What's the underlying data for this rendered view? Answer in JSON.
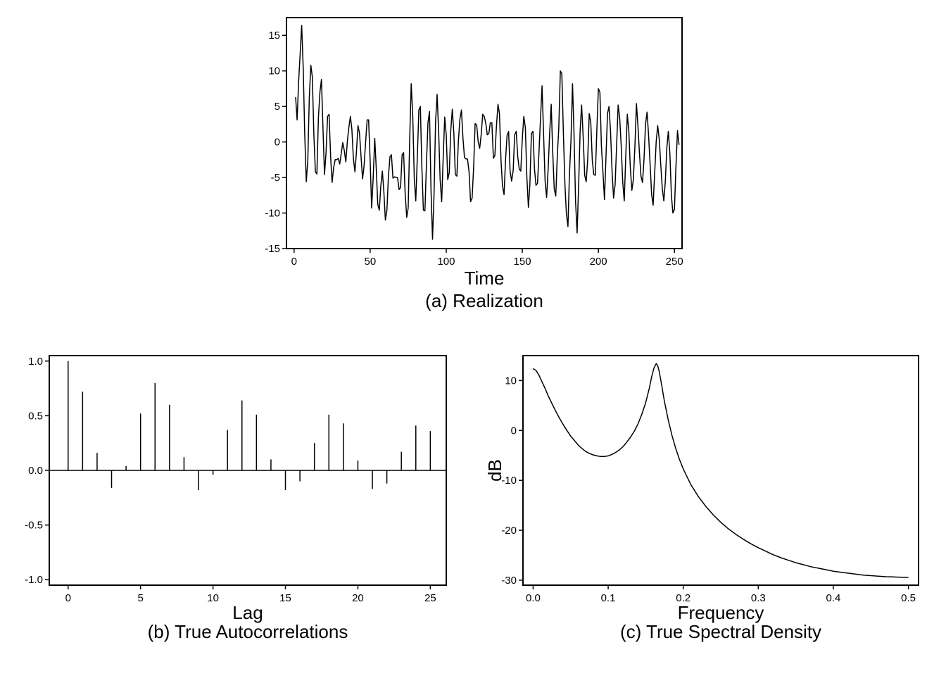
{
  "chart_data": [
    {
      "id": "realization",
      "type": "line",
      "caption": "(a) Realization",
      "xlabel": "Time",
      "ylabel": "",
      "xlim": [
        -5,
        255
      ],
      "ylim": [
        -15,
        17.5
      ],
      "xticks": [
        0,
        50,
        100,
        150,
        200,
        250
      ],
      "xtick_labels": [
        "0",
        "50",
        "100",
        "150",
        "200",
        "250"
      ],
      "yticks": [
        -15,
        -10,
        -5,
        0,
        5,
        10,
        15
      ],
      "ytick_labels": [
        "-15",
        "-10",
        "-5",
        "0",
        "5",
        "10",
        "15"
      ],
      "points": [
        [
          1,
          6.3
        ],
        [
          2,
          3.1
        ],
        [
          3,
          8.6
        ],
        [
          4,
          12.5
        ],
        [
          5,
          16.4
        ],
        [
          6,
          10.4
        ],
        [
          7,
          1.2
        ],
        [
          8,
          -5.6
        ],
        [
          9,
          -2.6
        ],
        [
          10,
          6.2
        ],
        [
          11,
          10.8
        ],
        [
          12,
          9.2
        ],
        [
          13,
          1.1
        ],
        [
          14,
          -4.2
        ],
        [
          15,
          -4.5
        ],
        [
          16,
          3.5
        ],
        [
          17,
          7.1
        ],
        [
          18,
          8.8
        ],
        [
          19,
          1.8
        ],
        [
          20,
          -4.6
        ],
        [
          21,
          -1.5
        ],
        [
          22,
          3.6
        ],
        [
          23,
          3.9
        ],
        [
          24,
          -2.0
        ],
        [
          25,
          -5.7
        ],
        [
          26,
          -3.6
        ],
        [
          27,
          -2.5
        ],
        [
          28,
          -2.5
        ],
        [
          29,
          -2.3
        ],
        [
          30,
          -3.1
        ],
        [
          31,
          -1.6
        ],
        [
          32,
          -0.1
        ],
        [
          33,
          -1.2
        ],
        [
          34,
          -2.8
        ],
        [
          35,
          0.1
        ],
        [
          36,
          2.0
        ],
        [
          37,
          3.6
        ],
        [
          38,
          1.8
        ],
        [
          39,
          -2.4
        ],
        [
          40,
          -4.2
        ],
        [
          41,
          -1.4
        ],
        [
          42,
          2.3
        ],
        [
          43,
          1.2
        ],
        [
          44,
          -2.0
        ],
        [
          45,
          -5.2
        ],
        [
          46,
          -3.4
        ],
        [
          47,
          -0.1
        ],
        [
          48,
          3.1
        ],
        [
          49,
          3.1
        ],
        [
          50,
          -2.7
        ],
        [
          51,
          -9.3
        ],
        [
          52,
          -5.0
        ],
        [
          53,
          0.5
        ],
        [
          54,
          -3.6
        ],
        [
          55,
          -8.8
        ],
        [
          56,
          -9.6
        ],
        [
          57,
          -6.2
        ],
        [
          58,
          -4.1
        ],
        [
          59,
          -6.9
        ],
        [
          60,
          -11.0
        ],
        [
          61,
          -9.6
        ],
        [
          62,
          -4.9
        ],
        [
          63,
          -2.1
        ],
        [
          64,
          -1.8
        ],
        [
          65,
          -5.1
        ],
        [
          66,
          -4.9
        ],
        [
          67,
          -5.0
        ],
        [
          68,
          -5.0
        ],
        [
          69,
          -6.7
        ],
        [
          70,
          -6.4
        ],
        [
          71,
          -1.8
        ],
        [
          72,
          -1.5
        ],
        [
          73,
          -7.2
        ],
        [
          74,
          -10.6
        ],
        [
          75,
          -9.3
        ],
        [
          76,
          0.5
        ],
        [
          77,
          8.2
        ],
        [
          78,
          3.7
        ],
        [
          79,
          -5.2
        ],
        [
          80,
          -8.3
        ],
        [
          81,
          -2.1
        ],
        [
          82,
          4.5
        ],
        [
          83,
          5.0
        ],
        [
          84,
          -3.7
        ],
        [
          85,
          -9.6
        ],
        [
          86,
          -9.7
        ],
        [
          87,
          -3.0
        ],
        [
          88,
          2.7
        ],
        [
          89,
          4.3
        ],
        [
          90,
          -6.6
        ],
        [
          91,
          -13.7
        ],
        [
          92,
          -7.2
        ],
        [
          93,
          2.8
        ],
        [
          94,
          6.7
        ],
        [
          95,
          1.5
        ],
        [
          96,
          -5.3
        ],
        [
          97,
          -8.4
        ],
        [
          98,
          -2.4
        ],
        [
          99,
          3.5
        ],
        [
          100,
          1.0
        ],
        [
          101,
          -5.3
        ],
        [
          102,
          -4.3
        ],
        [
          103,
          1.6
        ],
        [
          104,
          4.6
        ],
        [
          105,
          1.2
        ],
        [
          106,
          -4.6
        ],
        [
          107,
          -4.8
        ],
        [
          108,
          0.2
        ],
        [
          109,
          3.2
        ],
        [
          110,
          4.5
        ],
        [
          111,
          0.6
        ],
        [
          112,
          -2.2
        ],
        [
          113,
          -2.4
        ],
        [
          114,
          -2.4
        ],
        [
          115,
          -4.2
        ],
        [
          116,
          -8.4
        ],
        [
          117,
          -7.9
        ],
        [
          118,
          -3.6
        ],
        [
          119,
          2.6
        ],
        [
          120,
          2.4
        ],
        [
          121,
          0.0
        ],
        [
          122,
          -0.9
        ],
        [
          123,
          1.1
        ],
        [
          124,
          3.9
        ],
        [
          125,
          3.6
        ],
        [
          126,
          2.6
        ],
        [
          127,
          1.0
        ],
        [
          128,
          1.2
        ],
        [
          129,
          2.7
        ],
        [
          130,
          2.7
        ],
        [
          131,
          -2.3
        ],
        [
          132,
          -1.9
        ],
        [
          133,
          2.2
        ],
        [
          134,
          5.3
        ],
        [
          135,
          4.0
        ],
        [
          136,
          -2.6
        ],
        [
          137,
          -6.2
        ],
        [
          138,
          -7.4
        ],
        [
          139,
          -2.4
        ],
        [
          140,
          0.9
        ],
        [
          141,
          1.5
        ],
        [
          142,
          -4.1
        ],
        [
          143,
          -5.5
        ],
        [
          144,
          -4.0
        ],
        [
          145,
          1.0
        ],
        [
          146,
          1.5
        ],
        [
          147,
          -2.1
        ],
        [
          148,
          -3.8
        ],
        [
          149,
          -4.1
        ],
        [
          150,
          0.4
        ],
        [
          151,
          3.6
        ],
        [
          152,
          2.0
        ],
        [
          153,
          -4.9
        ],
        [
          154,
          -9.2
        ],
        [
          155,
          -6.0
        ],
        [
          156,
          1.2
        ],
        [
          157,
          1.5
        ],
        [
          158,
          -3.7
        ],
        [
          159,
          -6.1
        ],
        [
          160,
          -5.8
        ],
        [
          161,
          -1.3
        ],
        [
          162,
          3.5
        ],
        [
          163,
          7.9
        ],
        [
          164,
          1.0
        ],
        [
          165,
          -5.6
        ],
        [
          166,
          -7.8
        ],
        [
          167,
          -3.7
        ],
        [
          168,
          1.2
        ],
        [
          169,
          5.3
        ],
        [
          170,
          -1.5
        ],
        [
          171,
          -6.6
        ],
        [
          172,
          -7.6
        ],
        [
          173,
          -1.9
        ],
        [
          174,
          2.0
        ],
        [
          175,
          10.0
        ],
        [
          176,
          9.6
        ],
        [
          177,
          1.3
        ],
        [
          178,
          -6.0
        ],
        [
          179,
          -10.1
        ],
        [
          180,
          -11.9
        ],
        [
          181,
          -4.6
        ],
        [
          182,
          0.2
        ],
        [
          183,
          8.2
        ],
        [
          184,
          1.2
        ],
        [
          185,
          -8.3
        ],
        [
          186,
          -12.8
        ],
        [
          187,
          -6.4
        ],
        [
          188,
          1.6
        ],
        [
          189,
          5.2
        ],
        [
          190,
          0.8
        ],
        [
          191,
          -4.7
        ],
        [
          192,
          -5.6
        ],
        [
          193,
          -2.4
        ],
        [
          194,
          4.0
        ],
        [
          195,
          2.8
        ],
        [
          196,
          -2.6
        ],
        [
          197,
          -4.6
        ],
        [
          198,
          -4.7
        ],
        [
          199,
          1.8
        ],
        [
          200,
          7.5
        ],
        [
          201,
          7.0
        ],
        [
          202,
          -0.5
        ],
        [
          203,
          -4.2
        ],
        [
          204,
          -8.1
        ],
        [
          205,
          -2.2
        ],
        [
          206,
          4.0
        ],
        [
          207,
          5.0
        ],
        [
          208,
          1.5
        ],
        [
          209,
          -4.2
        ],
        [
          210,
          -7.9
        ],
        [
          211,
          -6.0
        ],
        [
          212,
          -0.3
        ],
        [
          213,
          5.2
        ],
        [
          214,
          3.4
        ],
        [
          215,
          -0.4
        ],
        [
          216,
          -5.6
        ],
        [
          217,
          -8.3
        ],
        [
          218,
          -2.1
        ],
        [
          219,
          3.9
        ],
        [
          220,
          1.7
        ],
        [
          221,
          -3.6
        ],
        [
          222,
          -6.8
        ],
        [
          223,
          -5.3
        ],
        [
          224,
          -0.7
        ],
        [
          225,
          5.4
        ],
        [
          226,
          2.3
        ],
        [
          227,
          -1.6
        ],
        [
          228,
          -4.8
        ],
        [
          229,
          -5.7
        ],
        [
          230,
          -2.4
        ],
        [
          231,
          2.5
        ],
        [
          232,
          4.2
        ],
        [
          233,
          1.0
        ],
        [
          234,
          -3.1
        ],
        [
          235,
          -7.4
        ],
        [
          236,
          -8.9
        ],
        [
          237,
          -4.4
        ],
        [
          238,
          0.1
        ],
        [
          239,
          2.3
        ],
        [
          240,
          0.4
        ],
        [
          241,
          -3.1
        ],
        [
          242,
          -6.5
        ],
        [
          243,
          -8.3
        ],
        [
          244,
          -5.6
        ],
        [
          245,
          -0.8
        ],
        [
          246,
          1.5
        ],
        [
          247,
          -1.6
        ],
        [
          248,
          -7.6
        ],
        [
          249,
          -10.0
        ],
        [
          250,
          -9.5
        ],
        [
          251,
          -3.3
        ],
        [
          252,
          1.6
        ],
        [
          253,
          -0.4
        ]
      ]
    },
    {
      "id": "autocorrelations",
      "type": "bar",
      "caption": "(b) True Autocorrelations",
      "xlabel": "Lag",
      "ylabel": "",
      "xlim": [
        -1.3,
        26.1
      ],
      "ylim": [
        -1.05,
        1.05
      ],
      "xticks": [
        0,
        5,
        10,
        15,
        20,
        25
      ],
      "xtick_labels": [
        "0",
        "5",
        "10",
        "15",
        "20",
        "25"
      ],
      "yticks": [
        -1.0,
        -0.5,
        0.0,
        0.5,
        1.0
      ],
      "ytick_labels": [
        "-1.0",
        "-0.5",
        "0.0",
        "0.5",
        "1.0"
      ],
      "lags": [
        0,
        1,
        2,
        3,
        4,
        5,
        6,
        7,
        8,
        9,
        10,
        11,
        12,
        13,
        14,
        15,
        16,
        17,
        18,
        19,
        20,
        21,
        22,
        23,
        24,
        25
      ],
      "values": [
        1.0,
        0.72,
        0.16,
        -0.16,
        0.04,
        0.52,
        0.8,
        0.6,
        0.12,
        -0.18,
        -0.04,
        0.37,
        0.64,
        0.51,
        0.1,
        -0.18,
        -0.1,
        0.25,
        0.51,
        0.43,
        0.09,
        -0.17,
        -0.12,
        0.17,
        0.41,
        0.36
      ]
    },
    {
      "id": "spectral-density",
      "type": "line",
      "caption": "(c) True Spectral Density",
      "xlabel": "Frequency",
      "ylabel": "dB",
      "xlim": [
        -0.0135,
        0.5135
      ],
      "ylim": [
        -31.0,
        15.0
      ],
      "xticks": [
        0.0,
        0.1,
        0.2,
        0.3,
        0.4,
        0.5
      ],
      "xtick_labels": [
        "0.0",
        "0.1",
        "0.2",
        "0.3",
        "0.4",
        "0.5"
      ],
      "yticks": [
        -30,
        -20,
        -10,
        0,
        10
      ],
      "ytick_labels": [
        "-30",
        "-20",
        "-10",
        "0",
        "10"
      ],
      "points": [
        [
          0.0,
          12.4
        ],
        [
          0.004,
          12.0
        ],
        [
          0.008,
          11.0
        ],
        [
          0.012,
          9.7
        ],
        [
          0.016,
          8.4
        ],
        [
          0.02,
          7.0
        ],
        [
          0.025,
          5.4
        ],
        [
          0.03,
          3.9
        ],
        [
          0.035,
          2.5
        ],
        [
          0.04,
          1.2
        ],
        [
          0.045,
          0.0
        ],
        [
          0.05,
          -1.1
        ],
        [
          0.055,
          -2.0
        ],
        [
          0.06,
          -2.9
        ],
        [
          0.065,
          -3.6
        ],
        [
          0.07,
          -4.2
        ],
        [
          0.075,
          -4.6
        ],
        [
          0.08,
          -4.9
        ],
        [
          0.085,
          -5.1
        ],
        [
          0.09,
          -5.2
        ],
        [
          0.095,
          -5.2
        ],
        [
          0.1,
          -5.1
        ],
        [
          0.105,
          -4.8
        ],
        [
          0.11,
          -4.4
        ],
        [
          0.115,
          -3.9
        ],
        [
          0.12,
          -3.2
        ],
        [
          0.125,
          -2.3
        ],
        [
          0.13,
          -1.3
        ],
        [
          0.135,
          -0.1
        ],
        [
          0.14,
          1.4
        ],
        [
          0.145,
          3.3
        ],
        [
          0.15,
          5.6
        ],
        [
          0.155,
          8.6
        ],
        [
          0.158,
          10.8
        ],
        [
          0.161,
          12.5
        ],
        [
          0.164,
          13.4
        ],
        [
          0.166,
          13.0
        ],
        [
          0.168,
          11.8
        ],
        [
          0.171,
          9.3
        ],
        [
          0.175,
          5.8
        ],
        [
          0.18,
          2.1
        ],
        [
          0.185,
          -1.0
        ],
        [
          0.19,
          -3.6
        ],
        [
          0.195,
          -5.8
        ],
        [
          0.2,
          -7.7
        ],
        [
          0.21,
          -10.8
        ],
        [
          0.22,
          -13.2
        ],
        [
          0.23,
          -15.2
        ],
        [
          0.24,
          -16.9
        ],
        [
          0.25,
          -18.4
        ],
        [
          0.26,
          -19.7
        ],
        [
          0.27,
          -20.8
        ],
        [
          0.28,
          -21.8
        ],
        [
          0.29,
          -22.7
        ],
        [
          0.3,
          -23.5
        ],
        [
          0.31,
          -24.2
        ],
        [
          0.32,
          -24.9
        ],
        [
          0.33,
          -25.5
        ],
        [
          0.34,
          -26.0
        ],
        [
          0.35,
          -26.5
        ],
        [
          0.36,
          -26.9
        ],
        [
          0.37,
          -27.3
        ],
        [
          0.38,
          -27.6
        ],
        [
          0.39,
          -27.9
        ],
        [
          0.4,
          -28.2
        ],
        [
          0.41,
          -28.4
        ],
        [
          0.42,
          -28.6
        ],
        [
          0.43,
          -28.8
        ],
        [
          0.44,
          -29.0
        ],
        [
          0.45,
          -29.1
        ],
        [
          0.46,
          -29.2
        ],
        [
          0.47,
          -29.3
        ],
        [
          0.48,
          -29.35
        ],
        [
          0.49,
          -29.4
        ],
        [
          0.5,
          -29.45
        ]
      ]
    }
  ]
}
